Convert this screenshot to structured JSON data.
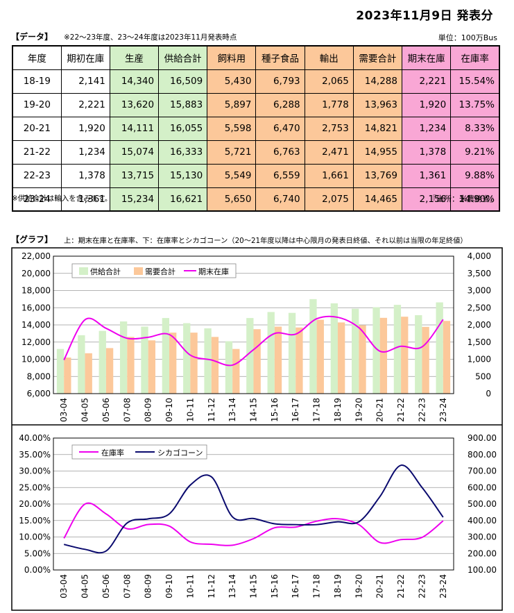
{
  "header": {
    "date_title": "2023年11月9日 発表分",
    "data_label": "【データ】",
    "data_note": "※22～23年度、23～24年度は2023年11月発表時点",
    "unit": "単位：100万Bus",
    "supply_note": "※供給合計は輸入を含みます。",
    "source": "『出所：米農務省』",
    "graph_label": "【グラフ】",
    "graph_note": "上：期末在庫と在庫率、下：在庫率とシカゴコーン（20～21年度以降は中心限月の発表日終値、それ以前は当限の年足終値）"
  },
  "table": {
    "headers": [
      "年度",
      "期初在庫",
      "生産",
      "供給合計",
      "飼料用",
      "種子食品",
      "輸出",
      "需要合計",
      "期末在庫",
      "在庫率"
    ],
    "rows": [
      [
        "18-19",
        "2,141",
        "14,340",
        "16,509",
        "5,430",
        "6,793",
        "2,065",
        "14,288",
        "2,221",
        "15.54%"
      ],
      [
        "19-20",
        "2,221",
        "13,620",
        "15,883",
        "5,897",
        "6,288",
        "1,778",
        "13,963",
        "1,920",
        "13.75%"
      ],
      [
        "20-21",
        "1,920",
        "14,111",
        "16,055",
        "5,598",
        "6,470",
        "2,753",
        "14,821",
        "1,234",
        "8.33%"
      ],
      [
        "21-22",
        "1,234",
        "15,074",
        "16,333",
        "5,721",
        "6,763",
        "2,471",
        "14,955",
        "1,378",
        "9.21%"
      ],
      [
        "22-23",
        "1,378",
        "13,715",
        "15,130",
        "5,549",
        "6,559",
        "1,661",
        "13,769",
        "1,361",
        "9.88%"
      ],
      [
        "23-24",
        "1,361",
        "15,234",
        "16,621",
        "5,650",
        "6,740",
        "2,075",
        "14,465",
        "2,156",
        "14.90%"
      ]
    ]
  },
  "colors": {
    "supply_bar": "#d4f0c8",
    "demand_bar": "#fcc89a",
    "ending_stock_line": "#ee00ee",
    "ratio_line": "#ee00ee",
    "corn_line": "#0a0a6e",
    "table_green": "#d4f0c8",
    "table_orange": "#fcc89a",
    "table_pink": "#f9a7d5"
  },
  "chart_data": [
    {
      "type": "bar",
      "categories": [
        "03-04",
        "04-05",
        "05-06",
        "07-08",
        "08-09",
        "09-10",
        "10-11",
        "11-12",
        "13-14",
        "14-15",
        "15-16",
        "16-17",
        "17-18",
        "18-19",
        "19-20",
        "20-21",
        "21-22",
        "22-23",
        "23-24"
      ],
      "series": [
        {
          "name": "供給合計",
          "axis": "left",
          "type": "bar",
          "values": [
            11200,
            12800,
            13300,
            14400,
            13800,
            14800,
            14200,
            13600,
            12100,
            14800,
            15500,
            15400,
            17000,
            16509,
            15883,
            16055,
            16333,
            15130,
            16621
          ]
        },
        {
          "name": "需要合計",
          "axis": "left",
          "type": "bar",
          "values": [
            10200,
            10700,
            11300,
            12600,
            12200,
            13100,
            13100,
            12600,
            11200,
            13500,
            13800,
            13700,
            14600,
            14288,
            13963,
            14821,
            14955,
            13769,
            14465
          ]
        },
        {
          "name": "期末在庫",
          "axis": "right",
          "type": "line",
          "values": [
            980,
            2150,
            1900,
            1610,
            1640,
            1720,
            1120,
            980,
            830,
            1280,
            1750,
            1730,
            2180,
            2221,
            1920,
            1234,
            1378,
            1361,
            2156
          ]
        }
      ],
      "ylim": [
        6000,
        22000
      ],
      "yticks": [
        "6,000",
        "8,000",
        "10,000",
        "12,000",
        "14,000",
        "16,000",
        "18,000",
        "20,000",
        "22,000"
      ],
      "y2lim": [
        0,
        4000
      ],
      "y2ticks": [
        "0",
        "500",
        "1,000",
        "1,500",
        "2,000",
        "2,500",
        "3,000",
        "3,500",
        "4,000"
      ],
      "legend": "top-left",
      "grid": true
    },
    {
      "type": "line",
      "categories": [
        "03-04",
        "04-05",
        "05-06",
        "07-08",
        "08-09",
        "09-10",
        "10-11",
        "11-12",
        "13-14",
        "14-15",
        "15-16",
        "16-17",
        "17-18",
        "18-19",
        "19-20",
        "20-21",
        "21-22",
        "22-23",
        "23-24"
      ],
      "series": [
        {
          "name": "在庫率",
          "axis": "left",
          "values": [
            9.6,
            20.0,
            17.0,
            12.5,
            13.8,
            13.3,
            8.5,
            7.8,
            7.5,
            9.5,
            12.8,
            13.0,
            14.8,
            15.54,
            13.75,
            8.33,
            9.21,
            9.88,
            14.9
          ]
        },
        {
          "name": "シカゴコーン",
          "axis": "right",
          "values": [
            255,
            225,
            215,
            385,
            410,
            440,
            615,
            665,
            422,
            412,
            380,
            375,
            375,
            392,
            392,
            545,
            735,
            600,
            420
          ]
        }
      ],
      "ylim": [
        0,
        40
      ],
      "yticks": [
        "0.00%",
        "5.00%",
        "10.00%",
        "15.00%",
        "20.00%",
        "25.00%",
        "30.00%",
        "35.00%",
        "40.00%"
      ],
      "y2lim": [
        100,
        900
      ],
      "y2ticks": [
        "100.00",
        "200.00",
        "300.00",
        "400.00",
        "500.00",
        "600.00",
        "700.00",
        "800.00",
        "900.00"
      ],
      "legend": "top-left",
      "grid": true
    }
  ]
}
